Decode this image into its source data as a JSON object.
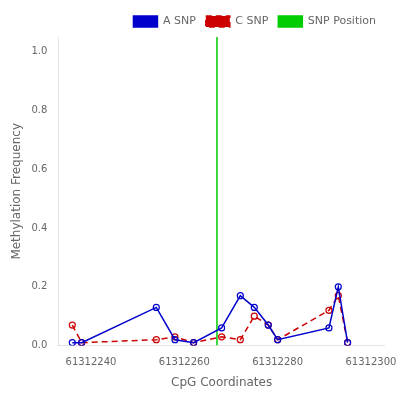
{
  "chart_data": {
    "type": "line",
    "xlabel": "CpG Coordinates",
    "ylabel": "Methylation Frequency",
    "x": [
      61312236,
      61312238,
      61312254,
      61312258,
      61312262,
      61312268,
      61312272,
      61312275,
      61312278,
      61312280,
      61312291,
      61312293,
      61312295
    ],
    "series": [
      {
        "name": "A SNP",
        "color": "#0000CC",
        "marker": "circle",
        "line_style": "solid",
        "values": [
          0.01,
          0.01,
          0.13,
          0.02,
          0.01,
          0.06,
          0.17,
          0.13,
          0.07,
          0.02,
          0.06,
          0.2,
          0.01
        ]
      },
      {
        "name": "C SNP",
        "color": "#CC0000",
        "marker": "circle",
        "line_style": "dashed",
        "values": [
          0.07,
          0.01,
          0.02,
          0.03,
          0.01,
          0.03,
          0.02,
          0.1,
          0.07,
          0.02,
          0.12,
          0.17,
          0.01
        ]
      }
    ],
    "annotations": [
      {
        "type": "vline",
        "x": 61312267,
        "text": "SNP Position",
        "color": "#00CC00"
      }
    ],
    "xlim": [
      61312233,
      61312303
    ],
    "xticks": [
      61312240,
      61312260,
      61312280,
      61312300
    ],
    "ylim": [
      0.0,
      1.05
    ],
    "yticks": [
      {
        "value": 0.0,
        "label": "0.0"
      },
      0.2,
      0.4,
      0.6,
      0.8,
      {
        "value": 1.0,
        "label": "1.0"
      }
    ],
    "grid": false,
    "legend": "upper right"
  }
}
